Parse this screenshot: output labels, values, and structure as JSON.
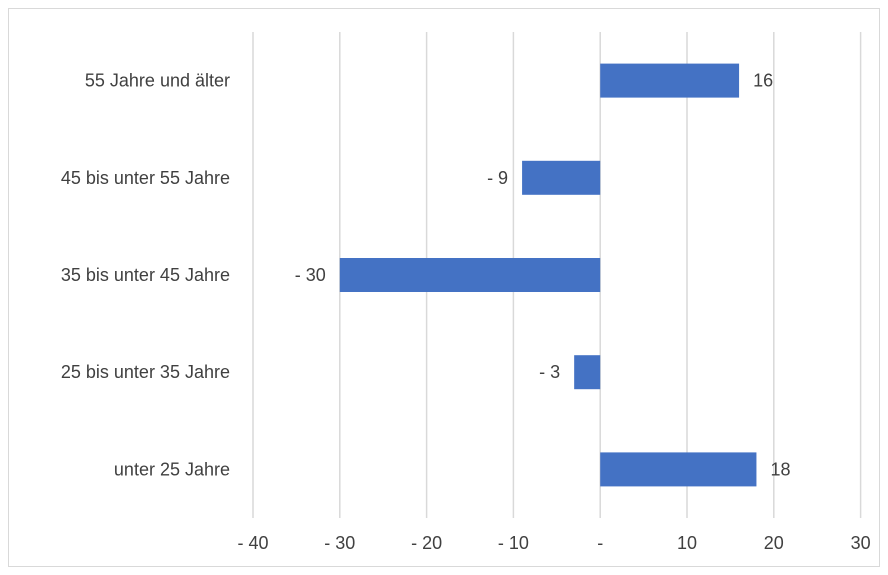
{
  "chart_data": {
    "type": "bar",
    "orientation": "horizontal",
    "categories": [
      "unter 25 Jahre",
      "25 bis unter 35 Jahre",
      "35 bis unter 45 Jahre",
      "45 bis unter 55 Jahre",
      "55 Jahre und älter"
    ],
    "values": [
      18,
      -3,
      -30,
      -9,
      16
    ],
    "data_labels": [
      "18",
      "- 3",
      "- 30",
      "- 9",
      "16"
    ],
    "title": "",
    "xlabel": "",
    "ylabel": "",
    "xlim": [
      -40,
      30
    ],
    "x_ticks": [
      -40,
      -30,
      -20,
      -10,
      0,
      10,
      20,
      30
    ],
    "x_tick_labels": [
      "- 40",
      "- 30",
      "- 20",
      "- 10",
      "-",
      "10",
      "20",
      "30"
    ],
    "grid": true,
    "legend": "none",
    "colors": {
      "bar": "#4472C4",
      "grid": "#d9d9d9",
      "text": "#404040"
    }
  }
}
